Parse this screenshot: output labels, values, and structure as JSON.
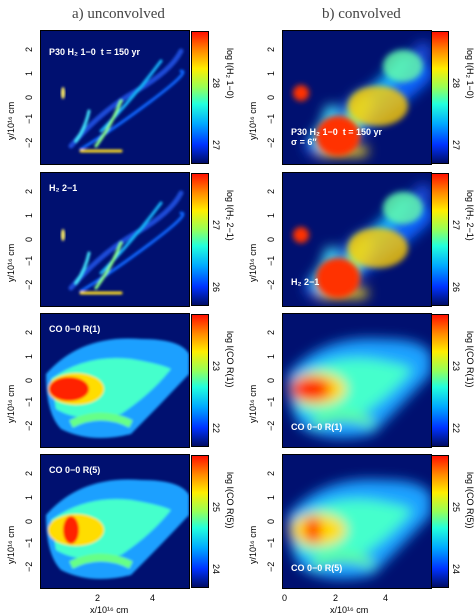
{
  "columns": {
    "left_title": "a) unconvolved",
    "right_title": "b) convolved"
  },
  "axes": {
    "ylabel": "y/10¹⁶ cm",
    "xlabel": "x/10¹⁶ cm",
    "yticks": [
      "2",
      "1",
      "0",
      "−1",
      "−2"
    ],
    "xticks_left": [
      "2",
      "4"
    ],
    "xticks_right": [
      "0",
      "2",
      "4"
    ]
  },
  "rows": [
    {
      "left_label": "P30 H₂ 1−0  t = 150 yr",
      "right_label": "P30 H₂ 1−0  t = 150 yr\nσ = 6″",
      "left_cbar_label": "log I(H₂ 1−0)",
      "right_cbar_label": "log I(H₂ 1−0)",
      "left_ticks": [
        "28",
        "27"
      ],
      "right_ticks": [
        "28",
        "27"
      ]
    },
    {
      "left_label": "H₂ 2−1",
      "right_label": "H₂ 2−1",
      "left_cbar_label": "log I(H₂ 2−1)",
      "right_cbar_label": "log I(H₂ 2−1)",
      "left_ticks": [
        "27",
        "26"
      ],
      "right_ticks": [
        "27",
        "26"
      ]
    },
    {
      "left_label": "CO 0−0 R(1)",
      "right_label": "CO 0−0 R(1)",
      "left_cbar_label": "log I(CO R(1))",
      "right_cbar_label": "log I(CO R(1))",
      "left_ticks": [
        "23",
        "22"
      ],
      "right_ticks": [
        "23",
        "22"
      ]
    },
    {
      "left_label": "CO 0−0 R(5)",
      "right_label": "CO 0−0 R(5)",
      "left_cbar_label": "log I(CO R(5))",
      "right_cbar_label": "log I(CO R(5))",
      "left_ticks": [
        "25",
        "24"
      ],
      "right_ticks": [
        "25",
        "24"
      ]
    }
  ]
}
